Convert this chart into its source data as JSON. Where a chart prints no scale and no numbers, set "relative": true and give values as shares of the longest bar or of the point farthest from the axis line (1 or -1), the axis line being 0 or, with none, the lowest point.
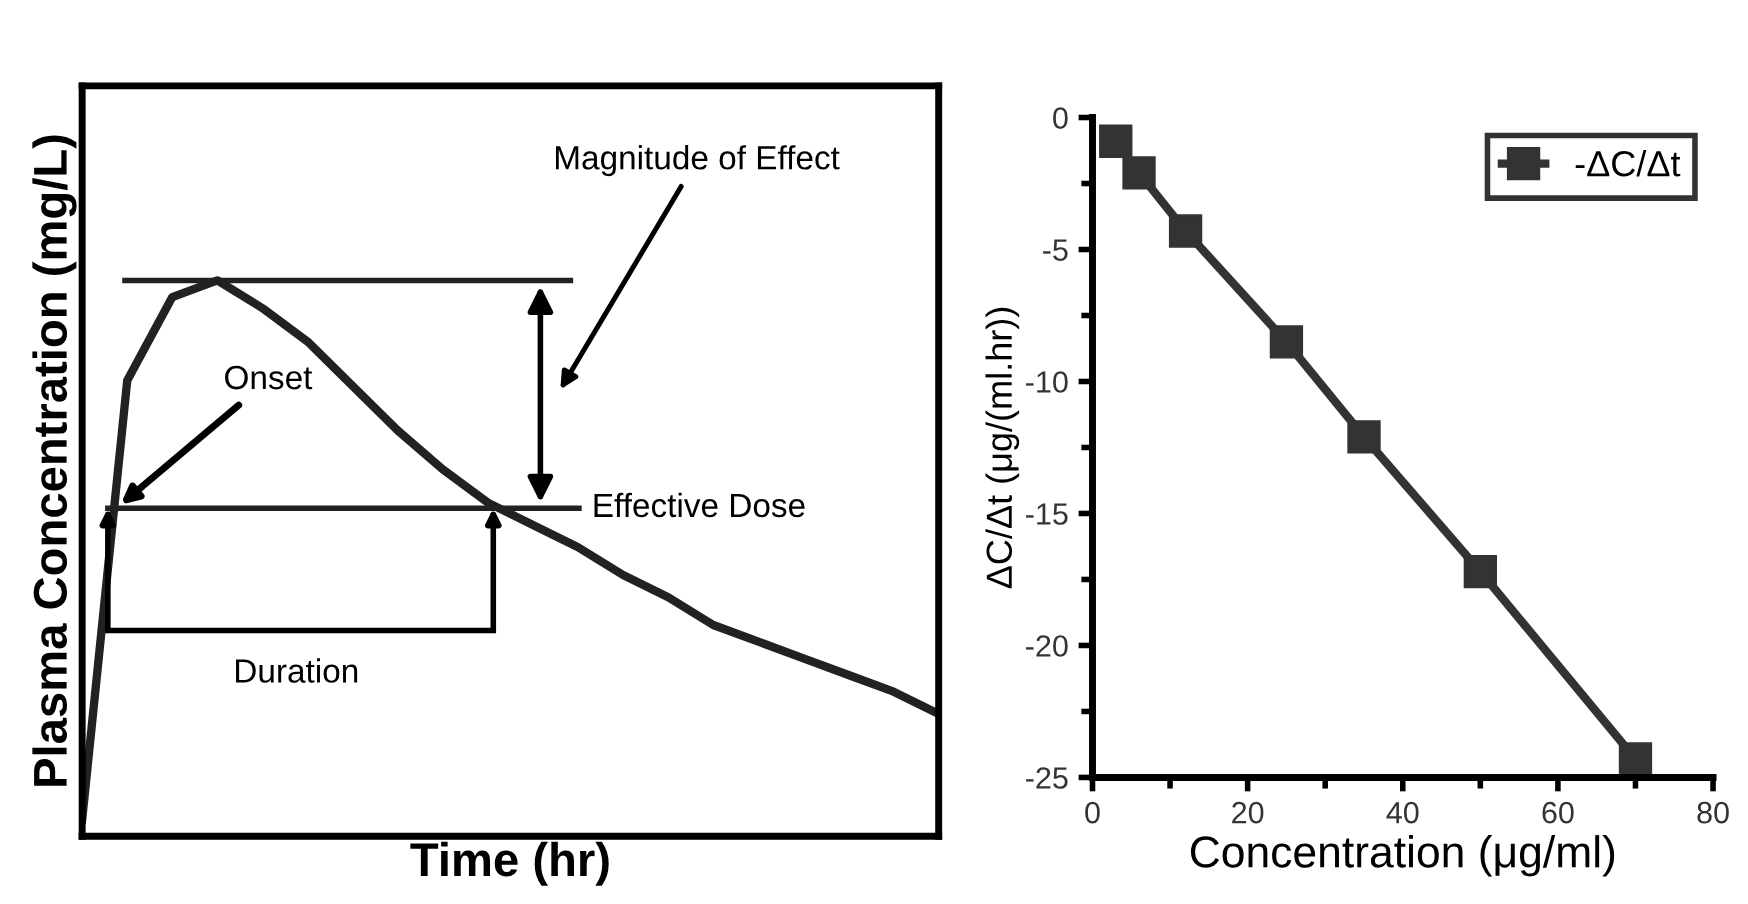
{
  "chart_data": [
    {
      "type": "line",
      "relative": true,
      "xlabel": "Time (hr)",
      "ylabel": "Plasma Concentration (mg/L)",
      "tick_labels": false,
      "grid": false,
      "legend": false,
      "marker": "none",
      "categories": [
        null,
        null,
        null,
        null,
        null,
        null,
        null,
        null,
        null,
        null,
        null,
        null,
        null,
        null,
        null,
        null,
        null,
        null,
        null,
        null
      ],
      "series": [
        {
          "color": "#222222",
          "values": [
            0.03,
            0.82,
            0.97,
            1.0,
            0.95,
            0.89,
            0.81,
            0.73,
            0.66,
            0.6,
            0.56,
            0.52,
            0.47,
            0.43,
            0.38,
            0.35,
            0.32,
            0.29,
            0.26,
            0.22
          ]
        }
      ],
      "ref_lines": [
        {
          "axis": "y",
          "value": 1.0,
          "label": null,
          "color": "#222222"
        },
        {
          "axis": "y",
          "value": 0.59,
          "label": "Effective Dose",
          "color": "#222222"
        }
      ],
      "annotations": [
        "Magnitude of Effect",
        "Onset",
        "Duration"
      ]
    },
    {
      "type": "line",
      "xlabel": "Concentration (μg/ml)",
      "ylabel": "ΔC/Δt (μg/(ml.hr))",
      "legend": "top right",
      "grid": false,
      "marker": "square",
      "xlim": [
        0,
        80
      ],
      "xticks": [
        0,
        20,
        40,
        60,
        80
      ],
      "ylim": [
        -25,
        0
      ],
      "yticks": [
        0,
        -5,
        -10,
        -15,
        -20,
        -25
      ],
      "x": [
        3,
        6,
        12,
        25,
        35,
        50,
        70
      ],
      "series": [
        {
          "name": "-ΔC/Δt",
          "color": "#333333",
          "values": [
            -0.9,
            -2.1,
            -4.3,
            -8.5,
            -12.1,
            -17.2,
            -24.3
          ]
        }
      ]
    }
  ]
}
